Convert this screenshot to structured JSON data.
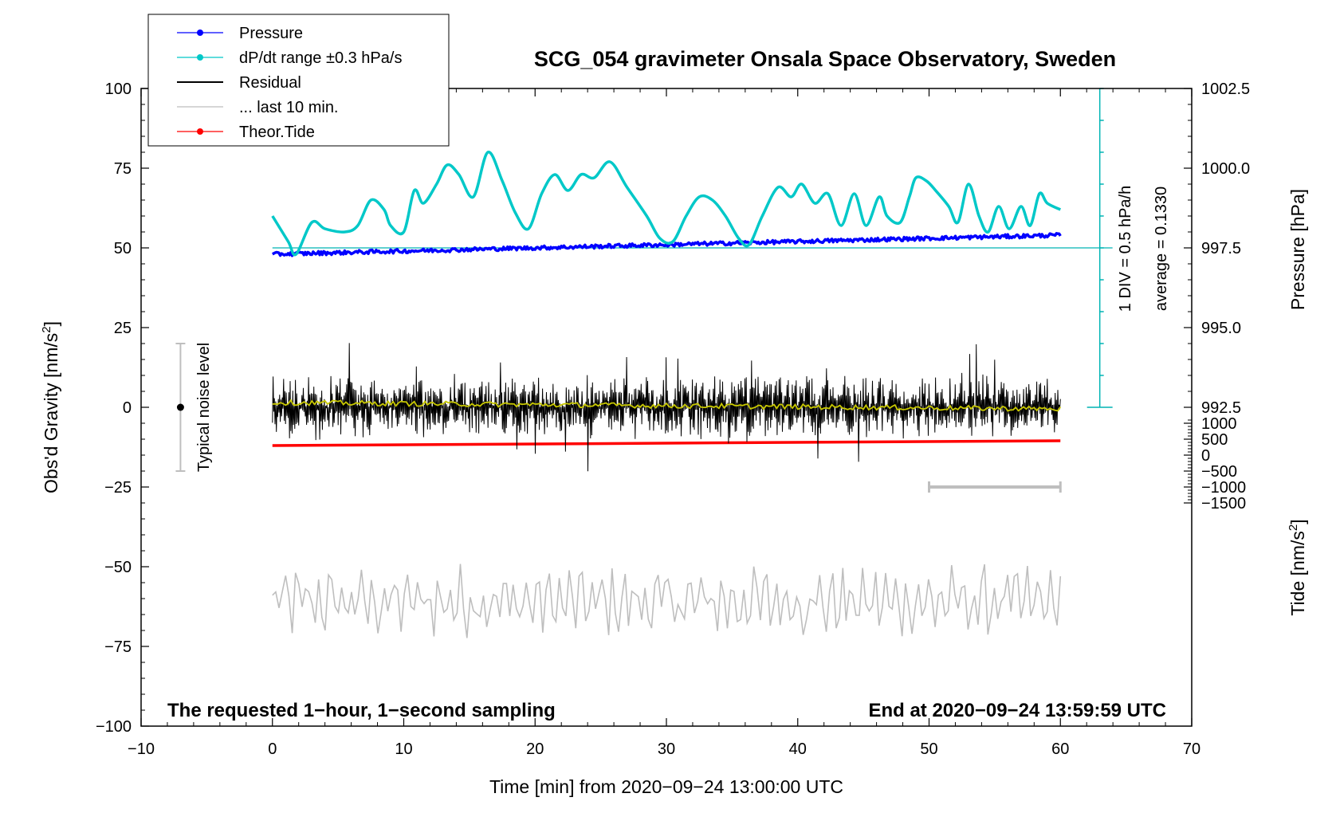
{
  "chart_data": {
    "type": "line",
    "title": "SCG_054 gravimeter Onsala Space Observatory, Sweden",
    "xlabel": "Time [min] from 2020−09−24 13:00:00 UTC",
    "ylabel_left": "Obs'd Gravity [nm/s",
    "ylabel_left_sup": "2",
    "ylabel_left_end": "]",
    "ylabel_right_top": "Pressure [hPa]",
    "ylabel_right_bottom": "Tide [nm/s",
    "ylabel_right_bottom_sup": "2",
    "ylabel_right_bottom_end": "]",
    "xlim": [
      -10,
      70
    ],
    "ylim": [
      -100,
      100
    ],
    "x_ticks": [
      -10,
      0,
      10,
      20,
      30,
      40,
      50,
      60,
      70
    ],
    "x_tick_labels": [
      "−10",
      "0",
      "10",
      "20",
      "30",
      "40",
      "50",
      "60",
      "70"
    ],
    "y_ticks": [
      -100,
      -75,
      -50,
      -25,
      0,
      25,
      50,
      75,
      100
    ],
    "y_tick_labels": [
      "−100",
      "−75",
      "−50",
      "−25",
      "0",
      "25",
      "50",
      "75",
      "100"
    ],
    "pressure_ticks": [
      992.5,
      995.0,
      997.5,
      1000.0,
      1002.5
    ],
    "pressure_tick_labels": [
      "992.5",
      "995.0",
      "997.5",
      "1000.0",
      "1002.5"
    ],
    "pressure_axis": {
      "value_at_y50": 997.5,
      "units_per_y": 0.1
    },
    "tide_ticks": [
      -1500,
      -1000,
      -500,
      0,
      500,
      1000
    ],
    "tide_tick_labels": [
      "−1500",
      "−1000",
      "−500",
      "0",
      "500",
      "1000"
    ],
    "tide_axis": {
      "value_at_y0": 1500,
      "units_per_y": 100
    },
    "legend_position": "top-left",
    "legend": [
      {
        "label": "Pressure",
        "color": "#0000ff",
        "marker": true
      },
      {
        "label": "dP/dt range ±0.3 hPa/s",
        "color": "#00c8c8",
        "marker": true
      },
      {
        "label": "Residual",
        "color": "#000000",
        "marker": false
      },
      {
        "label": "... last 10 min.",
        "color": "#bebebe",
        "marker": false
      },
      {
        "label": "Theor.Tide",
        "color": "#ff0000",
        "marker": true
      }
    ],
    "series": [
      {
        "name": "Pressure",
        "color": "#0000ff",
        "x": [
          0,
          5,
          10,
          15,
          20,
          25,
          30,
          35,
          40,
          45,
          50,
          55,
          60
        ],
        "y_hpa": [
          997.3,
          997.35,
          997.4,
          997.45,
          997.5,
          997.55,
          997.6,
          997.65,
          997.7,
          997.75,
          997.8,
          997.85,
          997.9
        ]
      },
      {
        "name": "dP/dt range ±0.3 hPa/s",
        "color": "#00c8c8",
        "x": [
          0,
          1.2,
          1.8,
          3,
          4,
          5.5,
          6.5,
          7.5,
          8.5,
          9,
          10,
          10.8,
          11.5,
          12.5,
          13.3,
          14.2,
          15.3,
          16.4,
          17.5,
          18.5,
          19.5,
          20.5,
          21.5,
          22.5,
          23.5,
          24.5,
          25.7,
          27,
          28.5,
          29.5,
          30.5,
          31.5,
          32.5,
          33.5,
          34.5,
          35.5,
          36.3,
          37.3,
          38.5,
          39.5,
          40.3,
          41.3,
          42.3,
          43.3,
          44.3,
          45.2,
          46.2,
          46.8,
          47.8,
          48.5,
          49,
          49.8,
          50.5,
          51.5,
          52.2,
          53,
          53.8,
          54.5,
          55.3,
          56.1,
          57,
          57.7,
          58.4,
          59,
          60
        ],
        "y": [
          60,
          52,
          48,
          58,
          56,
          55,
          57,
          65,
          62,
          57,
          55,
          68,
          64,
          70,
          76,
          73,
          66,
          80,
          71,
          61,
          56,
          67,
          73,
          68,
          73,
          72,
          77,
          69,
          60,
          53,
          52,
          60,
          66,
          65,
          60,
          53,
          51,
          60,
          69,
          66,
          70,
          64,
          67,
          57,
          67,
          57,
          66,
          60,
          58,
          66,
          72,
          71,
          68,
          63,
          58,
          70,
          60,
          55,
          63,
          56,
          63,
          57,
          67,
          64,
          62
        ]
      },
      {
        "name": "Residual",
        "color": "#000000",
        "amplitude_typical": 8,
        "amplitude_max": 22,
        "n_points": 1200,
        "x_range": [
          0,
          60
        ]
      },
      {
        "name": "Residual smoothed",
        "color": "#c8c800",
        "x": [
          0,
          60
        ],
        "y": [
          1.5,
          -0.5
        ]
      },
      {
        "name": "Theor.Tide",
        "color": "#ff0000",
        "x": [
          0,
          60
        ],
        "y_tide": [
          300,
          450
        ]
      },
      {
        "name": "... last 10 min.",
        "color": "#bebebe",
        "center": -61,
        "amplitude": 12,
        "n_points": 240,
        "x_range": [
          0,
          60
        ]
      }
    ],
    "pressure_scale_bar": {
      "label_line1": "1 DIV = 0.5 hPa/h",
      "label_line2": "average = 0.1330",
      "x": 63,
      "y_range": [
        0,
        100
      ],
      "divisions": 10
    },
    "noise_bar": {
      "label": "Typical noise level",
      "x": -7,
      "y_center": 0,
      "half_range": 20
    },
    "window_bar": {
      "x_range": [
        50,
        60
      ],
      "y": -25
    },
    "footer_left": "The requested 1−hour, 1−second sampling",
    "footer_right": "End at 2020−09−24 13:59:59 UTC"
  }
}
